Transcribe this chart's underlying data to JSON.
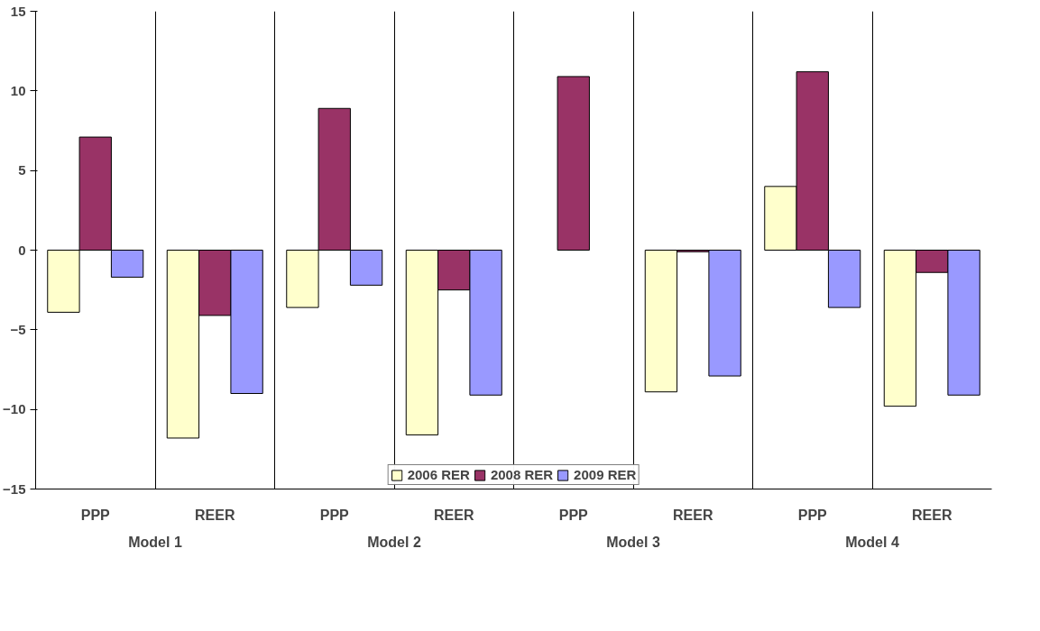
{
  "chart_data": {
    "type": "bar",
    "categories": [
      "PPP",
      "REER",
      "PPP",
      "REER",
      "PPP",
      "REER",
      "PPP",
      "REER"
    ],
    "annotations": [
      "Model 1",
      "Model 2",
      "Model 3",
      "Model 4"
    ],
    "series": [
      {
        "name": "2006 RER",
        "color": "#ffffcc",
        "values": [
          -3.9,
          -11.8,
          -3.6,
          -11.6,
          null,
          -8.9,
          4.0,
          -9.8
        ]
      },
      {
        "name": "2008 RER",
        "color": "#993366",
        "values": [
          7.1,
          -4.1,
          8.9,
          -2.5,
          10.9,
          -0.1,
          11.2,
          -1.4
        ]
      },
      {
        "name": "2009 RER",
        "color": "#9999ff",
        "values": [
          -1.7,
          -9.0,
          -2.2,
          -9.1,
          null,
          -7.9,
          -3.6,
          -9.1
        ]
      }
    ],
    "ylim": [
      -15,
      15
    ],
    "yticks": [
      -15,
      -10,
      -5,
      0,
      5,
      10,
      15
    ],
    "legend": "bottom"
  }
}
